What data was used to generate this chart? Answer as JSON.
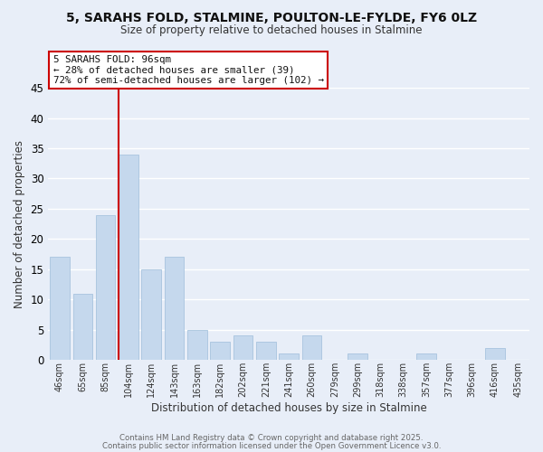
{
  "title": "5, SARAHS FOLD, STALMINE, POULTON-LE-FYLDE, FY6 0LZ",
  "subtitle": "Size of property relative to detached houses in Stalmine",
  "xlabel": "Distribution of detached houses by size in Stalmine",
  "ylabel": "Number of detached properties",
  "categories": [
    "46sqm",
    "65sqm",
    "85sqm",
    "104sqm",
    "124sqm",
    "143sqm",
    "163sqm",
    "182sqm",
    "202sqm",
    "221sqm",
    "241sqm",
    "260sqm",
    "279sqm",
    "299sqm",
    "318sqm",
    "338sqm",
    "357sqm",
    "377sqm",
    "396sqm",
    "416sqm",
    "435sqm"
  ],
  "values": [
    17,
    11,
    24,
    34,
    15,
    17,
    5,
    3,
    4,
    3,
    1,
    4,
    0,
    1,
    0,
    0,
    1,
    0,
    0,
    2,
    0
  ],
  "bar_color": "#c5d8ed",
  "bar_edge_color": "#a8c4de",
  "background_color": "#e8eef8",
  "grid_color": "#ffffff",
  "vline_x_index": 3,
  "vline_color": "#cc0000",
  "annotation_title": "5 SARAHS FOLD: 96sqm",
  "annotation_line1": "← 28% of detached houses are smaller (39)",
  "annotation_line2": "72% of semi-detached houses are larger (102) →",
  "annotation_box_color": "#ffffff",
  "annotation_box_edge": "#cc0000",
  "ylim": [
    0,
    45
  ],
  "yticks": [
    0,
    5,
    10,
    15,
    20,
    25,
    30,
    35,
    40,
    45
  ],
  "footer1": "Contains HM Land Registry data © Crown copyright and database right 2025.",
  "footer2": "Contains public sector information licensed under the Open Government Licence v3.0."
}
